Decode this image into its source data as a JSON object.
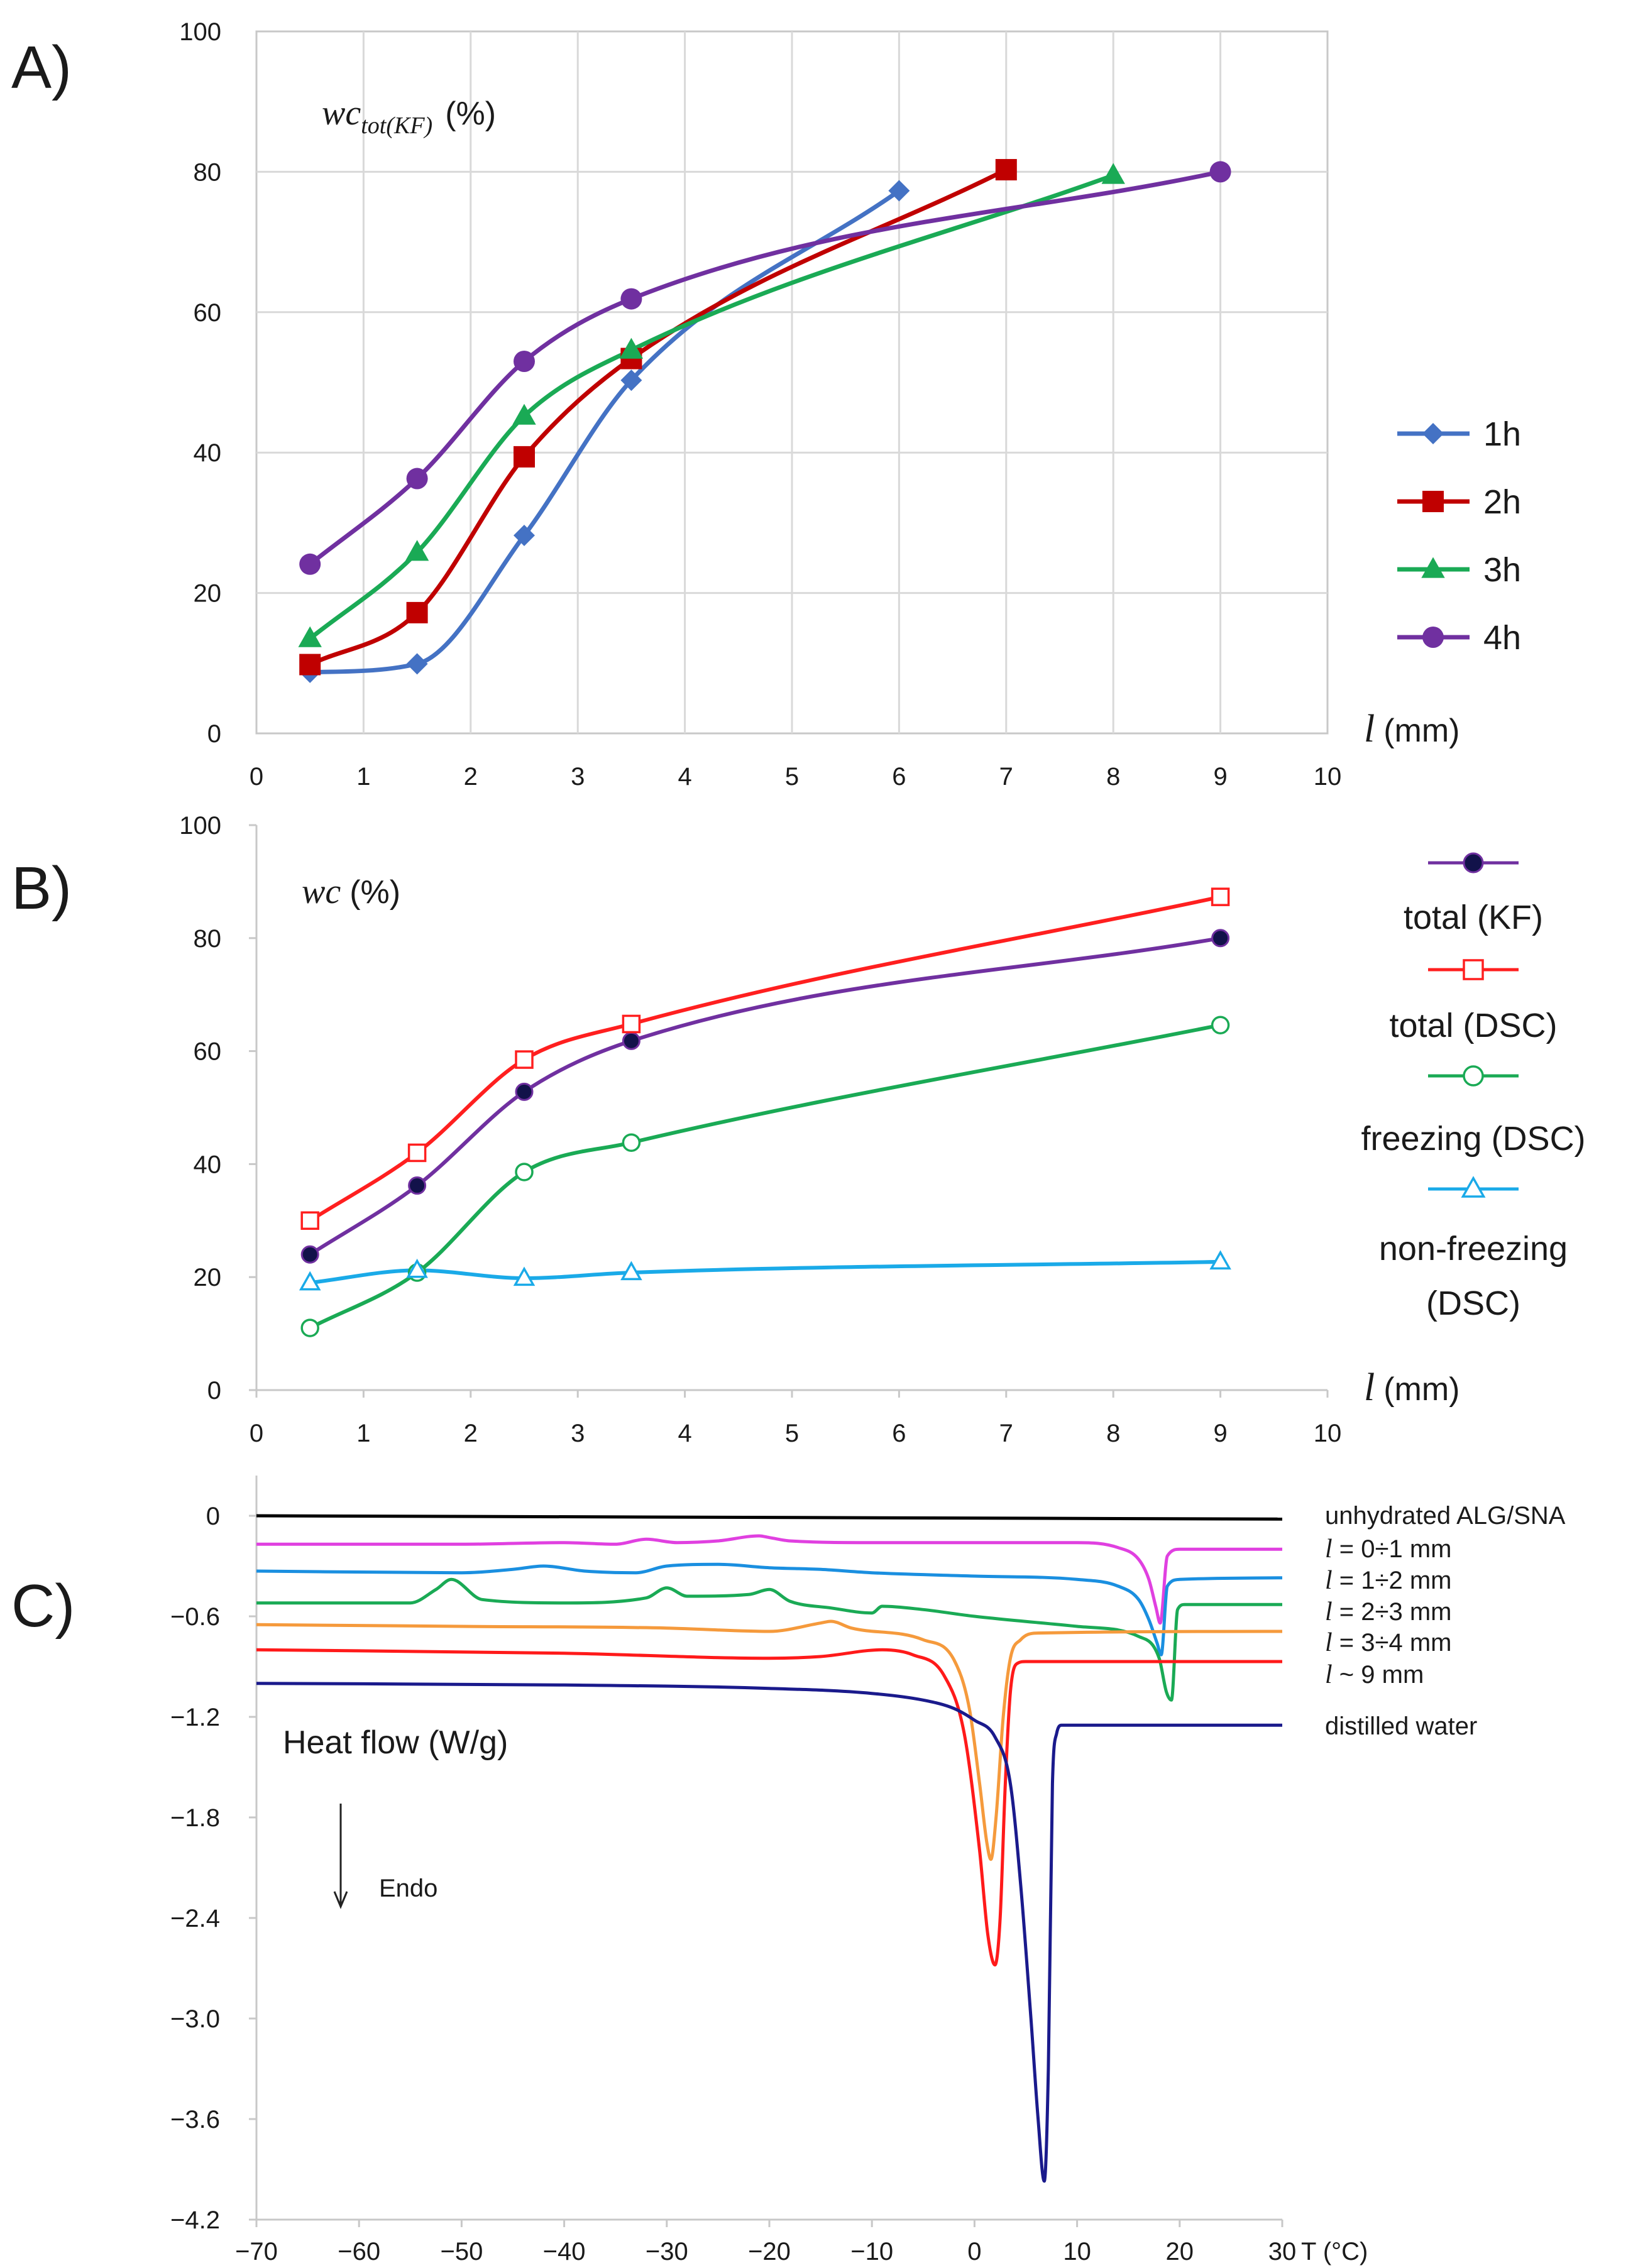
{
  "chart_data": [
    {
      "panel": "A)",
      "type": "line",
      "ylabel_main": "wc",
      "ylabel_sub": "tot(KF)",
      "ylabel_unit": "(%)",
      "xlabel_var": "l",
      "xlabel_unit": "(mm)",
      "xlim": [
        0,
        10
      ],
      "ylim": [
        0,
        100
      ],
      "xticks": [
        0,
        1,
        2,
        3,
        4,
        5,
        6,
        7,
        8,
        9,
        10
      ],
      "yticks": [
        0,
        20,
        40,
        60,
        80,
        100
      ],
      "grid": true,
      "legend_position": "right",
      "series": [
        {
          "name": "1h",
          "color": "#4472C4",
          "marker": "diamond",
          "x": [
            0.5,
            1.5,
            2.5,
            3.5,
            6
          ],
          "y": [
            8.7,
            9.9,
            28.2,
            50.3,
            77.3
          ]
        },
        {
          "name": "2h",
          "color": "#C00000",
          "marker": "square",
          "x": [
            0.5,
            1.5,
            2.5,
            3.5,
            7
          ],
          "y": [
            9.8,
            17.2,
            39.4,
            53.4,
            80.3
          ]
        },
        {
          "name": "3h",
          "color": "#1AAA55",
          "marker": "triangle",
          "x": [
            0.5,
            1.5,
            2.5,
            3.5,
            8
          ],
          "y": [
            13.5,
            25.8,
            45.2,
            54.6,
            79.5
          ]
        },
        {
          "name": "4h",
          "color": "#7030A0",
          "marker": "circle",
          "x": [
            0.5,
            1.5,
            2.5,
            3.5,
            9
          ],
          "y": [
            24.1,
            36.3,
            53.0,
            61.9,
            80.0
          ]
        }
      ]
    },
    {
      "panel": "B)",
      "type": "line",
      "ylabel_main": "wc",
      "ylabel_unit": "(%)",
      "xlabel_var": "l",
      "xlabel_unit": "(mm)",
      "xlim": [
        0,
        10
      ],
      "ylim": [
        0,
        100
      ],
      "xticks": [
        0,
        1,
        2,
        3,
        4,
        5,
        6,
        7,
        8,
        9,
        10
      ],
      "yticks": [
        0,
        20,
        40,
        60,
        80,
        100
      ],
      "grid": false,
      "legend_position": "right",
      "series": [
        {
          "name": "total (KF)",
          "color": "#7030A0",
          "marker": "filled-circle",
          "x": [
            0.5,
            1.5,
            2.5,
            3.5,
            9
          ],
          "y": [
            24.0,
            36.2,
            52.8,
            61.8,
            80.0
          ]
        },
        {
          "name": "total (DSC)",
          "color": "#FF1F1F",
          "marker": "open-square",
          "x": [
            0.5,
            1.5,
            2.5,
            3.5,
            9
          ],
          "y": [
            30.0,
            42.0,
            58.5,
            64.8,
            87.3
          ]
        },
        {
          "name": "freezing (DSC)",
          "color": "#1AAA55",
          "marker": "open-circle",
          "x": [
            0.5,
            1.5,
            2.5,
            3.5,
            9
          ],
          "y": [
            11.0,
            20.8,
            38.6,
            43.8,
            64.6
          ]
        },
        {
          "name": "non-freezing (DSC)",
          "color": "#1AAAE8",
          "marker": "open-triangle",
          "x": [
            0.5,
            1.5,
            2.5,
            3.5,
            9
          ],
          "y": [
            19.0,
            21.2,
            19.8,
            20.8,
            22.7
          ]
        }
      ]
    },
    {
      "panel": "C)",
      "type": "line",
      "ylabel": "Heat flow (W/g)",
      "arrow_label": "Endo",
      "xlabel": "T (°C)",
      "xlim": [
        -70,
        30
      ],
      "ylim": [
        -4.2,
        0.2
      ],
      "xticks": [
        -70,
        -60,
        -50,
        -40,
        -30,
        -20,
        -10,
        0,
        10,
        20,
        30
      ],
      "yticks": [
        0,
        -0.6,
        -1.2,
        -1.8,
        -2.4,
        -3.0,
        -3.6,
        -4.2
      ],
      "ytick_labels": [
        "0",
        "−0.6",
        "−1.2",
        "−1.8",
        "−2.4",
        "−3.0",
        "−3.6",
        "−4.2"
      ],
      "xtick_labels": [
        "−70",
        "−60",
        "−50",
        "−40",
        "−30",
        "−20",
        "−10",
        "0",
        "10",
        "20",
        "30"
      ],
      "grid": false,
      "series": [
        {
          "name": "unhydrated ALG/SNA",
          "color": "#000000",
          "x": [
            -70,
            30
          ],
          "y": [
            0,
            -0.02
          ]
        },
        {
          "name": "l = 0÷1 mm",
          "color": "#E040E0",
          "x": [
            -70,
            -50,
            -40,
            -35,
            -32,
            -29,
            -25,
            -21,
            -20,
            -18,
            -10,
            0,
            10,
            14,
            16,
            17,
            17.7,
            18.1,
            18.8,
            20,
            30
          ],
          "y": [
            -0.17,
            -0.17,
            -0.16,
            -0.17,
            -0.14,
            -0.16,
            -0.15,
            -0.12,
            -0.13,
            -0.15,
            -0.16,
            -0.16,
            -0.16,
            -0.19,
            -0.26,
            -0.38,
            -0.55,
            -0.64,
            -0.24,
            -0.2,
            -0.2
          ]
        },
        {
          "name": "l = 1÷2 mm",
          "color": "#1A8FE0",
          "x": [
            -70,
            -50,
            -45,
            -42,
            -38,
            -33,
            -30,
            -25,
            -20,
            -15,
            -10,
            0,
            10,
            14,
            16,
            17,
            17.8,
            18.2,
            18.8,
            20,
            30
          ],
          "y": [
            -0.33,
            -0.34,
            -0.32,
            -0.3,
            -0.33,
            -0.34,
            -0.3,
            -0.29,
            -0.31,
            -0.32,
            -0.34,
            -0.36,
            -0.38,
            -0.42,
            -0.5,
            -0.62,
            -0.76,
            -0.83,
            -0.42,
            -0.38,
            -0.37
          ]
        },
        {
          "name": "l = 2÷3 mm",
          "color": "#1AAA55",
          "x": [
            -70,
            -55,
            -52.5,
            -51,
            -48,
            -40,
            -32,
            -30,
            -28,
            -22,
            -20,
            -18,
            -14,
            -10,
            -9,
            -5,
            0,
            10,
            16,
            18,
            18.7,
            19.2,
            19.8,
            20.5,
            30
          ],
          "y": [
            -0.52,
            -0.52,
            -0.44,
            -0.38,
            -0.5,
            -0.52,
            -0.49,
            -0.43,
            -0.48,
            -0.47,
            -0.44,
            -0.51,
            -0.55,
            -0.58,
            -0.54,
            -0.56,
            -0.6,
            -0.66,
            -0.72,
            -0.85,
            -1.05,
            -1.1,
            -0.56,
            -0.53,
            -0.53
          ]
        },
        {
          "name": "l = 3÷4 mm",
          "color": "#F59A3C",
          "x": [
            -70,
            -50,
            -30,
            -20,
            -15,
            -14,
            -12,
            -5,
            -2,
            -0.5,
            0.5,
            1.2,
            1.6,
            2.1,
            2.8,
            3.5,
            4.5,
            6,
            30
          ],
          "y": [
            -0.65,
            -0.66,
            -0.67,
            -0.69,
            -0.64,
            -0.63,
            -0.67,
            -0.74,
            -0.86,
            -1.15,
            -1.6,
            -1.95,
            -2.05,
            -1.8,
            -1.2,
            -0.85,
            -0.74,
            -0.7,
            -0.69
          ]
        },
        {
          "name": "l ~ 9 mm",
          "color": "#FF1A1A",
          "x": [
            -70,
            -40,
            -20,
            -15,
            -9,
            -6,
            -3,
            -1,
            0.5,
            1.3,
            2,
            2.5,
            3,
            3.5,
            4.2,
            5,
            30
          ],
          "y": [
            -0.8,
            -0.82,
            -0.85,
            -0.84,
            -0.8,
            -0.83,
            -0.95,
            -1.3,
            -2.0,
            -2.5,
            -2.68,
            -2.4,
            -1.6,
            -1.05,
            -0.88,
            -0.87,
            -0.87
          ]
        },
        {
          "name": "distilled water",
          "color": "#1A1A8C",
          "x": [
            -70,
            -40,
            -20,
            -10,
            -5,
            -2,
            0,
            2,
            3.5,
            4.5,
            5.5,
            6.2,
            6.8,
            7.2,
            7.6,
            8,
            8.5,
            30
          ],
          "y": [
            -1.0,
            -1.01,
            -1.03,
            -1.06,
            -1.1,
            -1.15,
            -1.22,
            -1.32,
            -1.6,
            -2.2,
            -3.0,
            -3.6,
            -3.97,
            -3.3,
            -1.6,
            -1.3,
            -1.25,
            -1.25
          ]
        }
      ]
    }
  ],
  "panel_c_labels": [
    {
      "id": "unhydrated",
      "text": "unhydrated ALG/SNA",
      "italic_l": false
    },
    {
      "id": "l01",
      "text": " = 0÷1 mm",
      "italic_l": true
    },
    {
      "id": "l12",
      "text": " = 1÷2 mm",
      "italic_l": true
    },
    {
      "id": "l23",
      "text": " = 2÷3 mm",
      "italic_l": true
    },
    {
      "id": "l34",
      "text": " = 3÷4 mm",
      "italic_l": true
    },
    {
      "id": "l9",
      "text": " ~ 9 mm",
      "italic_l": true
    },
    {
      "id": "water",
      "text": "distilled water",
      "italic_l": false
    }
  ]
}
